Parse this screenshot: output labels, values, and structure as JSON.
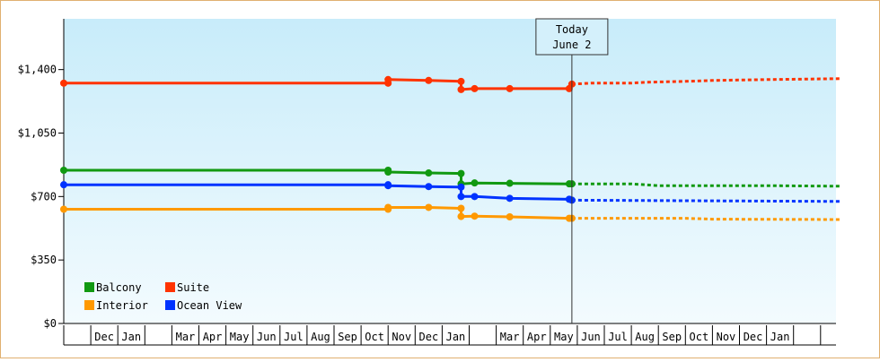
{
  "chart_data": {
    "type": "line",
    "title": "",
    "xlabel": "",
    "ylabel": "",
    "ylim": [
      0,
      1680
    ],
    "yticks": [
      0,
      350,
      700,
      1050,
      1400
    ],
    "ytick_labels": [
      "$0",
      "$350",
      "$700",
      "$1,050",
      "$1,400"
    ],
    "month_labels": [
      "",
      "Dec",
      "Jan",
      "",
      "Mar",
      "Apr",
      "May",
      "Jun",
      "Jul",
      "Aug",
      "Sep",
      "Oct",
      "Nov",
      "Dec",
      "Jan",
      "",
      "Mar",
      "Apr",
      "May",
      "Jun",
      "Jul",
      "Aug",
      "Sep",
      "Oct",
      "Nov",
      "Dec",
      "Jan",
      ""
    ],
    "today": {
      "line1": "Today",
      "line2": "June 2",
      "x": 18.8
    },
    "legend_placement": "bottom-left",
    "series": [
      {
        "name": "Balcony",
        "color": "#119911",
        "points": [
          [
            0,
            845
          ],
          [
            12,
            845
          ],
          [
            12,
            835
          ],
          [
            13.5,
            830
          ],
          [
            14.7,
            827
          ],
          [
            14.7,
            770
          ],
          [
            15.2,
            775
          ],
          [
            16.5,
            773
          ],
          [
            18.7,
            770
          ],
          [
            18.8,
            770
          ]
        ],
        "forecast": [
          [
            18.8,
            770
          ],
          [
            21,
            770
          ],
          [
            22,
            760
          ],
          [
            26,
            760
          ],
          [
            28.7,
            757
          ]
        ]
      },
      {
        "name": "Suite",
        "color": "#ff3300",
        "points": [
          [
            0,
            1325
          ],
          [
            12,
            1325
          ],
          [
            12,
            1345
          ],
          [
            13.5,
            1340
          ],
          [
            14.7,
            1335
          ],
          [
            14.7,
            1290
          ],
          [
            15.2,
            1295
          ],
          [
            16.5,
            1295
          ],
          [
            18.7,
            1295
          ],
          [
            18.8,
            1320
          ]
        ],
        "forecast": [
          [
            18.8,
            1320
          ],
          [
            19.5,
            1325
          ],
          [
            21,
            1325
          ],
          [
            21.5,
            1330
          ],
          [
            23,
            1335
          ],
          [
            24,
            1340
          ],
          [
            26,
            1345
          ],
          [
            28.7,
            1350
          ]
        ]
      },
      {
        "name": "Interior",
        "color": "#ff9900",
        "points": [
          [
            0,
            630
          ],
          [
            12,
            630
          ],
          [
            12,
            640
          ],
          [
            13.5,
            640
          ],
          [
            14.7,
            635
          ],
          [
            14.7,
            590
          ],
          [
            15.2,
            592
          ],
          [
            16.5,
            588
          ],
          [
            18.7,
            580
          ],
          [
            18.8,
            580
          ]
        ],
        "forecast": [
          [
            18.8,
            580
          ],
          [
            23,
            580
          ],
          [
            24,
            575
          ],
          [
            28.7,
            573
          ]
        ]
      },
      {
        "name": "Ocean View",
        "color": "#0033ff",
        "points": [
          [
            0,
            765
          ],
          [
            12,
            765
          ],
          [
            12,
            760
          ],
          [
            13.5,
            755
          ],
          [
            14.7,
            752
          ],
          [
            14.7,
            700
          ],
          [
            15.2,
            700
          ],
          [
            16.5,
            690
          ],
          [
            18.7,
            685
          ],
          [
            18.8,
            680
          ]
        ],
        "forecast": [
          [
            18.8,
            680
          ],
          [
            28.7,
            673
          ]
        ]
      }
    ]
  }
}
